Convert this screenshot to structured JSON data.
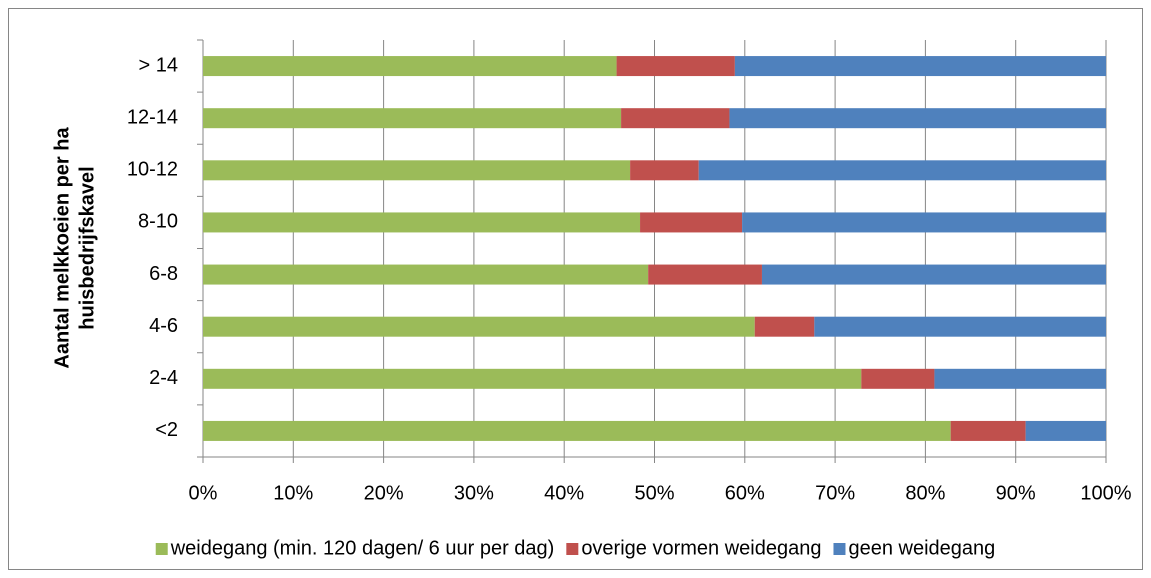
{
  "chart_data": {
    "type": "stacked-barh",
    "ylabel": [
      "Aantal melkkoeien per ha",
      "huisbedrijfskavel"
    ],
    "categories": [
      "<2",
      "2-4",
      "4-6",
      "6-8",
      "8-10",
      "10-12",
      "12-14",
      "> 14"
    ],
    "series": [
      {
        "name": "weidegang (min. 120 dagen/ 6 uur per dag)",
        "color": "#9bbb59",
        "values": [
          82.8,
          72.9,
          61.1,
          49.3,
          48.4,
          47.3,
          46.3,
          45.8
        ]
      },
      {
        "name": "overige vormen weidegang",
        "color": "#c0504d",
        "values": [
          8.3,
          8.1,
          6.6,
          12.6,
          11.3,
          7.6,
          12.0,
          13.1
        ]
      },
      {
        "name": "geen weidegang",
        "color": "#4f81bd",
        "values": [
          8.9,
          19.0,
          32.3,
          38.1,
          40.3,
          45.1,
          41.7,
          41.1
        ]
      }
    ],
    "xlim": [
      0,
      100
    ],
    "xticks": [
      {
        "value": 0,
        "label": "0%"
      },
      {
        "value": 10,
        "label": "10%"
      },
      {
        "value": 20,
        "label": "20%"
      },
      {
        "value": 30,
        "label": "30%"
      },
      {
        "value": 40,
        "label": "40%"
      },
      {
        "value": 50,
        "label": "50%"
      },
      {
        "value": 60,
        "label": "60%"
      },
      {
        "value": 70,
        "label": "70%"
      },
      {
        "value": 80,
        "label": "80%"
      },
      {
        "value": 90,
        "label": "90%"
      },
      {
        "value": 100,
        "label": "100%"
      }
    ],
    "grid": true,
    "legend": "bottom"
  }
}
